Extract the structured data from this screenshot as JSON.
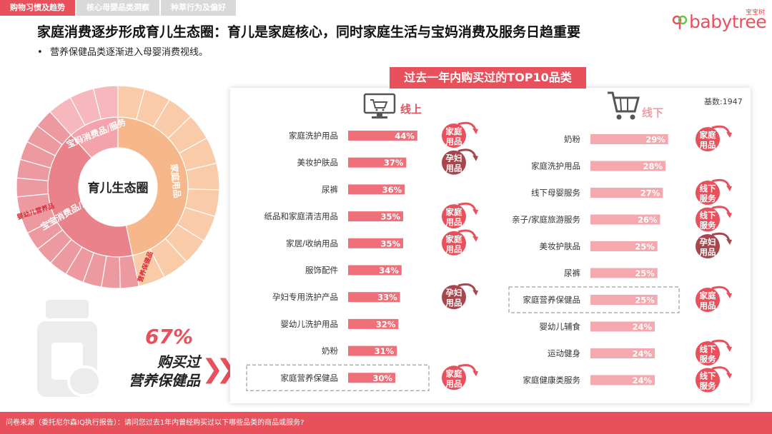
{
  "tabs": [
    {
      "label": "购物习惯及趋势",
      "active": true
    },
    {
      "label": "核心母婴品类洞察",
      "active": false
    },
    {
      "label": "种草行为及偏好",
      "active": false
    }
  ],
  "logo": {
    "text": "babytree",
    "cn": "宝宝树"
  },
  "headline": "家庭消费逐步形成育儿生态圈：育儿是家庭核心，同时家庭生活与宝妈消费及服务日趋重要",
  "bullet": "营养保健品类逐渐进入母婴消费视线。",
  "sunburst": {
    "center": "育儿生态圈",
    "rings": [
      {
        "label": "家庭用品"
      },
      {
        "label": "宝宝消费品/服务"
      },
      {
        "label": "宝妈消费品/服务"
      },
      {
        "label": "营养保健品",
        "highlight": true
      },
      {
        "label": "婴幼儿营养品",
        "highlight": true
      }
    ]
  },
  "callout": {
    "percent": "67%",
    "line1": "购买过",
    "line2": "营养保健品",
    "chevrons": "❯❯"
  },
  "banner": "过去一年内购买过的TOP10品类",
  "base": "基数:1947",
  "colors": {
    "accent": "#e8505b",
    "bar_online": "#f07079",
    "bar_offline": "#f5a8ae",
    "badge_dark": "#a8464d"
  },
  "chart_data": [
    {
      "type": "bar",
      "name": "线上",
      "categories": [
        "家庭洗护用品",
        "美妆护肤品",
        "尿裤",
        "纸品和家庭清洁用品",
        "家居/收纳用品",
        "服饰配件",
        "孕妇专用洗护产品",
        "婴幼儿洗护用品",
        "奶粉",
        "家庭营养保健品"
      ],
      "values": [
        44,
        37,
        36,
        35,
        35,
        34,
        33,
        32,
        31,
        30
      ],
      "value_labels": [
        "44%",
        "37%",
        "36%",
        "35%",
        "35%",
        "34%",
        "33%",
        "32%",
        "31%",
        "30%"
      ],
      "highlight_index": 9,
      "badges": [
        "家庭用品",
        "孕妇用品",
        "",
        "家庭用品",
        "家庭用品",
        "",
        "孕妇用品",
        "",
        "",
        "家庭用品"
      ],
      "badge_dark": [
        false,
        true,
        false,
        false,
        false,
        false,
        true,
        false,
        false,
        false
      ]
    },
    {
      "type": "bar",
      "name": "线下",
      "categories": [
        "奶粉",
        "家庭洗护用品",
        "线下母婴服务",
        "亲子/家庭旅游服务",
        "美妆护肤品",
        "尿裤",
        "家庭营养保健品",
        "婴幼儿辅食",
        "运动健身",
        "家庭健康类服务"
      ],
      "values": [
        29,
        28,
        27,
        26,
        25,
        25,
        25,
        24,
        24,
        24
      ],
      "value_labels": [
        "29%",
        "28%",
        "27%",
        "26%",
        "25%",
        "25%",
        "25%",
        "24%",
        "24%",
        "24%"
      ],
      "highlight_index": 6,
      "badges": [
        "家庭用品",
        "",
        "线下服务",
        "线下服务",
        "孕妇用品",
        "",
        "家庭用品",
        "",
        "线下服务",
        "线下服务"
      ],
      "badge_dark": [
        false,
        false,
        false,
        false,
        true,
        false,
        false,
        false,
        false,
        false
      ]
    }
  ],
  "footer": "问卷来源（委托尼尔森IQ执行报告）：请问您过去1年内曾经购买过以下哪些品类的商品或服务?"
}
